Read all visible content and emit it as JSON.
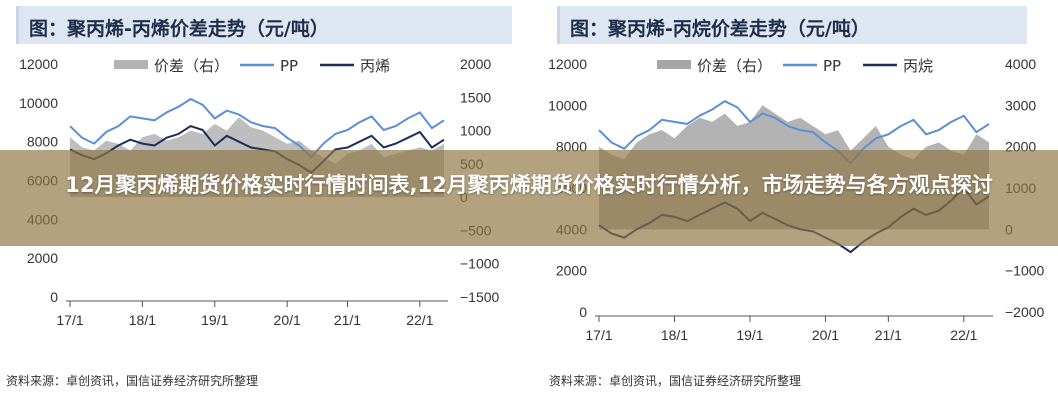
{
  "article_title": "12月聚丙烯期货价格实时行情时间表,12月聚丙烯期货价格实时行情分析，市场走势与各方观点探讨",
  "chart_data": [
    {
      "type": "line",
      "title": "图：聚丙烯-丙烯价差走势（元/吨）",
      "source": "资料来源：卓创资讯，国信证券经济研究所整理",
      "x": [
        "2017-01",
        "2017-03",
        "2017-05",
        "2017-07",
        "2017-09",
        "2017-11",
        "2018-01",
        "2018-03",
        "2018-05",
        "2018-07",
        "2018-09",
        "2018-11",
        "2019-01",
        "2019-03",
        "2019-05",
        "2019-07",
        "2019-09",
        "2019-11",
        "2020-01",
        "2020-03",
        "2020-05",
        "2020-07",
        "2020-09",
        "2020-11",
        "2021-01",
        "2021-03",
        "2021-05",
        "2021-07",
        "2021-09",
        "2021-11",
        "2022-01",
        "2022-03"
      ],
      "xticks": [
        "17/1",
        "18/1",
        "19/1",
        "20/1",
        "21/1",
        "22/1"
      ],
      "ylim_left": [
        0,
        12000
      ],
      "yticks_left": [
        0,
        2000,
        4000,
        6000,
        8000,
        10000,
        12000
      ],
      "ylim_right": [
        -1500,
        2000
      ],
      "yticks_right": [
        -1500,
        -1000,
        -500,
        0,
        500,
        1000,
        1500,
        2000
      ],
      "legend_position": "top",
      "series": [
        {
          "name": "价差（右）",
          "axis": "right",
          "kind": "area",
          "color": "#b3b3b3",
          "values": [
            900,
            750,
            700,
            850,
            800,
            700,
            900,
            950,
            850,
            900,
            1000,
            950,
            1100,
            1000,
            1200,
            1050,
            1000,
            900,
            800,
            850,
            700,
            600,
            500,
            650,
            700,
            800,
            600,
            650,
            700,
            750,
            700,
            800
          ]
        },
        {
          "name": "PP",
          "axis": "left",
          "kind": "line",
          "color": "#5b8fd6",
          "values": [
            8800,
            8200,
            7900,
            8500,
            8800,
            9300,
            9200,
            9100,
            9500,
            9800,
            10200,
            9900,
            9200,
            9600,
            9400,
            9000,
            8800,
            8700,
            8200,
            7800,
            7200,
            7900,
            8400,
            8600,
            9000,
            9300,
            8600,
            8800,
            9200,
            9500,
            8700,
            9100
          ]
        },
        {
          "name": "丙烯",
          "axis": "left",
          "kind": "line",
          "color": "#1f2d5c",
          "values": [
            7600,
            7300,
            7100,
            7400,
            7800,
            8100,
            7900,
            7800,
            8200,
            8400,
            8800,
            8600,
            7800,
            8300,
            8000,
            7700,
            7600,
            7500,
            7100,
            6800,
            6400,
            7000,
            7600,
            7700,
            8000,
            8300,
            7700,
            7900,
            8200,
            8500,
            7700,
            8100
          ]
        }
      ]
    },
    {
      "type": "line",
      "title": "图：聚丙烯-丙烷价差走势（元/吨）",
      "source": "资料来源：卓创资讯，国信证券经济研究所整理",
      "x": [
        "2017-01",
        "2017-03",
        "2017-05",
        "2017-07",
        "2017-09",
        "2017-11",
        "2018-01",
        "2018-03",
        "2018-05",
        "2018-07",
        "2018-09",
        "2018-11",
        "2019-01",
        "2019-03",
        "2019-05",
        "2019-07",
        "2019-09",
        "2019-11",
        "2020-01",
        "2020-03",
        "2020-05",
        "2020-07",
        "2020-09",
        "2020-11",
        "2021-01",
        "2021-03",
        "2021-05",
        "2021-07",
        "2021-09",
        "2021-11",
        "2022-01",
        "2022-03"
      ],
      "xticks": [
        "17/1",
        "18/1",
        "19/1",
        "20/1",
        "21/1",
        "22/1"
      ],
      "ylim_left": [
        0,
        12000
      ],
      "yticks_left": [
        0,
        2000,
        4000,
        6000,
        8000,
        10000,
        12000
      ],
      "ylim_right": [
        -2000,
        4000
      ],
      "yticks_right": [
        -2000,
        -1000,
        0,
        1000,
        2000,
        3000,
        4000
      ],
      "legend_position": "top",
      "series": [
        {
          "name": "价差（右）",
          "axis": "right",
          "kind": "area",
          "color": "#a6a6a6",
          "values": [
            2000,
            1800,
            1700,
            2100,
            2300,
            2400,
            2200,
            2500,
            2700,
            2600,
            2800,
            2500,
            2600,
            3000,
            2800,
            2600,
            2700,
            2500,
            2300,
            2400,
            1900,
            2200,
            2500,
            2000,
            1800,
            1700,
            2000,
            2100,
            1900,
            1800,
            2300,
            2100
          ]
        },
        {
          "name": "PP",
          "axis": "left",
          "kind": "line",
          "color": "#5b8fd6",
          "values": [
            8800,
            8200,
            7900,
            8500,
            8800,
            9300,
            9200,
            9100,
            9500,
            9800,
            10200,
            9900,
            9200,
            9600,
            9400,
            9000,
            8800,
            8700,
            8200,
            7800,
            7200,
            7900,
            8400,
            8600,
            9000,
            9300,
            8600,
            8800,
            9200,
            9500,
            8700,
            9100
          ]
        },
        {
          "name": "丙烷",
          "axis": "left",
          "kind": "line",
          "color": "#1f2d5c",
          "values": [
            4200,
            3800,
            3600,
            4000,
            4300,
            4700,
            4600,
            4400,
            4700,
            5000,
            5300,
            5000,
            4400,
            4800,
            4500,
            4200,
            4000,
            3900,
            3600,
            3300,
            2900,
            3400,
            3800,
            4100,
            4600,
            5000,
            4700,
            4900,
            5400,
            6000,
            5200,
            5600
          ]
        }
      ]
    }
  ]
}
